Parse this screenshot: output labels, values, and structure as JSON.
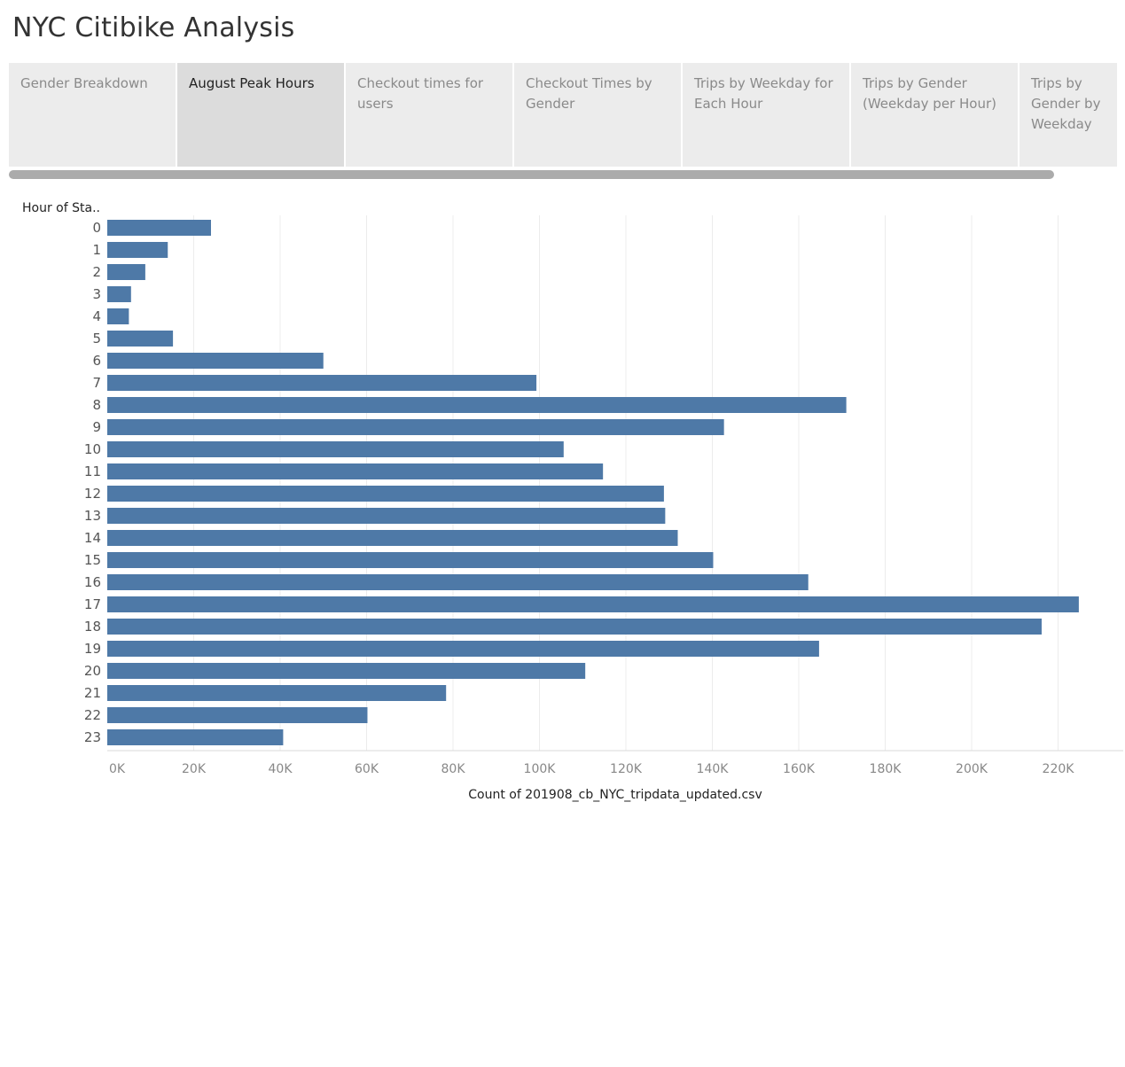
{
  "app": {
    "title": "NYC Citibike Analysis"
  },
  "tabs": [
    {
      "label": "Gender Breakdown",
      "active": false
    },
    {
      "label": "August Peak Hours",
      "active": true
    },
    {
      "label": "Checkout times for users",
      "active": false
    },
    {
      "label": "Checkout Times by Gender",
      "active": false
    },
    {
      "label": "Trips by Weekday for Each Hour",
      "active": false
    },
    {
      "label": "Trips by Gender (Weekday per Hour)",
      "active": false
    },
    {
      "label": "Trips by Gender by Weekday",
      "active": false
    }
  ],
  "colors": {
    "bar": "#4e79a7",
    "tab_active": "#dcdcdc",
    "tab_inactive": "#ececec",
    "grid": "#ececec"
  },
  "chart_data": {
    "type": "bar",
    "orientation": "horizontal",
    "ylabel": "Hour of Sta..",
    "xlabel": "Count of 201908_cb_NYC_tripdata_updated.csv",
    "categories": [
      "0",
      "1",
      "2",
      "3",
      "4",
      "5",
      "6",
      "7",
      "8",
      "9",
      "10",
      "11",
      "12",
      "13",
      "14",
      "15",
      "16",
      "17",
      "18",
      "19",
      "20",
      "21",
      "22",
      "23"
    ],
    "values": [
      24000,
      14000,
      8800,
      5500,
      5000,
      15200,
      50000,
      99300,
      171000,
      142700,
      105600,
      114700,
      128800,
      129100,
      132000,
      140200,
      162200,
      224800,
      216200,
      164700,
      110600,
      78400,
      60200,
      40700
    ],
    "xlim": [
      0,
      235000
    ],
    "xticks": [
      0,
      20000,
      40000,
      60000,
      80000,
      100000,
      120000,
      140000,
      160000,
      180000,
      200000,
      220000
    ],
    "xtick_labels": [
      "0K",
      "20K",
      "40K",
      "60K",
      "80K",
      "100K",
      "120K",
      "140K",
      "160K",
      "180K",
      "200K",
      "220K"
    ],
    "grid": true
  }
}
